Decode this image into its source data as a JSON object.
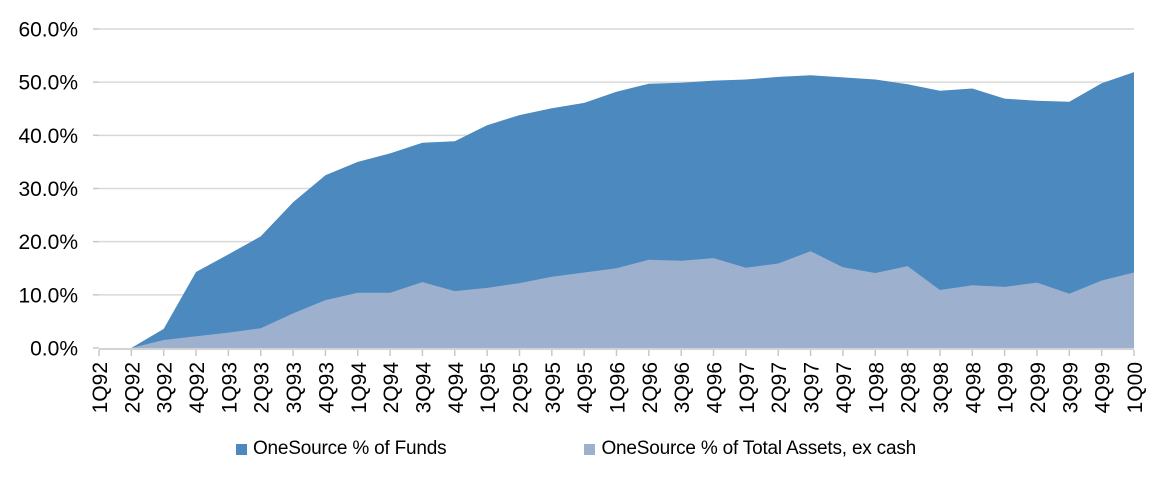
{
  "chart_data": {
    "type": "area",
    "title": "",
    "xlabel": "",
    "ylabel": "",
    "categories": [
      "1Q92",
      "2Q92",
      "3Q92",
      "4Q92",
      "1Q93",
      "2Q93",
      "3Q93",
      "4Q93",
      "1Q94",
      "2Q94",
      "3Q94",
      "4Q94",
      "1Q95",
      "2Q95",
      "3Q95",
      "4Q95",
      "1Q96",
      "2Q96",
      "3Q96",
      "4Q96",
      "1Q97",
      "2Q97",
      "3Q97",
      "4Q97",
      "1Q98",
      "2Q98",
      "3Q98",
      "4Q98",
      "1Q99",
      "2Q99",
      "3Q99",
      "4Q99",
      "1Q00"
    ],
    "series": [
      {
        "name": "OneSource % of Funds",
        "color": "#4C89BE",
        "values": [
          0.0,
          0.0,
          3.6,
          14.3,
          17.6,
          21.0,
          27.4,
          32.5,
          35.0,
          36.6,
          38.6,
          38.9,
          41.9,
          43.8,
          45.1,
          46.1,
          48.2,
          49.7,
          49.9,
          50.3,
          50.5,
          51.0,
          51.3,
          50.9,
          50.5,
          49.6,
          48.4,
          48.8,
          46.9,
          46.5,
          46.3,
          49.8,
          51.9
        ]
      },
      {
        "name": "OneSource % of Total Assets, ex cash",
        "color": "#9DB1CE",
        "values": [
          0.0,
          0.0,
          1.5,
          2.2,
          2.9,
          3.7,
          6.5,
          9.0,
          10.4,
          10.4,
          12.4,
          10.7,
          11.3,
          12.2,
          13.4,
          14.2,
          15.0,
          16.6,
          16.4,
          16.9,
          15.1,
          15.9,
          18.2,
          15.2,
          14.1,
          15.4,
          10.9,
          11.8,
          11.5,
          12.3,
          10.2,
          12.7,
          14.2
        ]
      }
    ],
    "ylim": [
      0,
      60
    ],
    "y_tick_values": [
      0,
      10,
      20,
      30,
      40,
      50,
      60
    ],
    "y_tick_labels": [
      "0.0%",
      "10.0%",
      "20.0%",
      "30.0%",
      "40.0%",
      "50.0%",
      "60.0%"
    ],
    "grid": "horizontal",
    "legend_position": "bottom",
    "overlap_not_stacked": true,
    "colors": {
      "grid": "#D9D9D9",
      "axis": "#D2D2D2",
      "tick": "#C8C8C8",
      "text": "#000000",
      "background": "#FFFFFF"
    }
  }
}
